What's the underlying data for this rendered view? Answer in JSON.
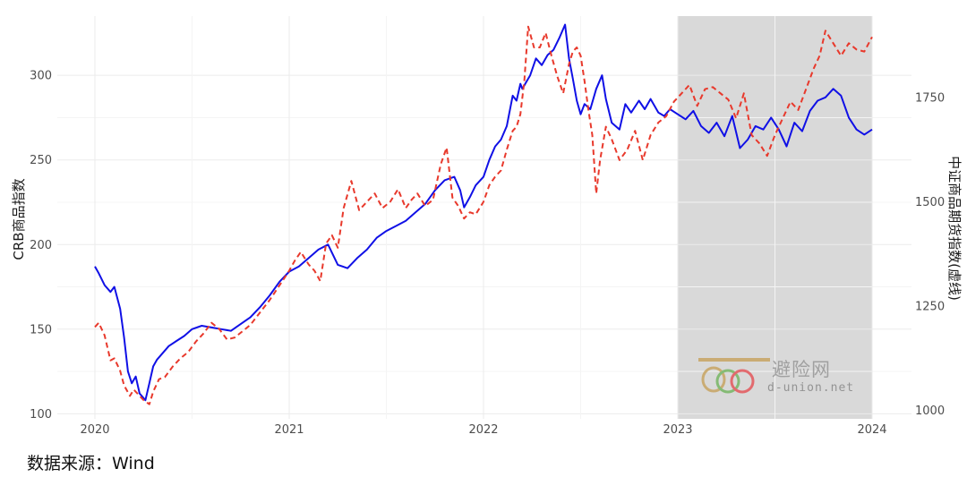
{
  "chart_data": {
    "type": "line",
    "title": "",
    "ylabel_left": "CRB商品指数",
    "ylabel_right": "中证商品期货指数(虚线)",
    "x_ticks": [
      "2020",
      "2021",
      "2022",
      "2023",
      "2024"
    ],
    "xlim": [
      2020.0,
      2024.0
    ],
    "ylim_left": [
      97,
      335
    ],
    "y_ticks_left": [
      100,
      150,
      200,
      250,
      300
    ],
    "ylim_right": [
      980,
      1945
    ],
    "y_ticks_right": [
      1000,
      1250,
      1500,
      1750
    ],
    "grid": true,
    "shaded_region": {
      "x_start": 2023.0,
      "x_end": 2024.0,
      "color": "#d9d9d9"
    },
    "series": [
      {
        "axis": "left",
        "style": "solid",
        "color": "#1010e6",
        "x": [
          2020.0,
          2020.02,
          2020.05,
          2020.08,
          2020.1,
          2020.13,
          2020.15,
          2020.17,
          2020.19,
          2020.21,
          2020.23,
          2020.26,
          2020.28,
          2020.3,
          2020.32,
          2020.35,
          2020.38,
          2020.42,
          2020.46,
          2020.5,
          2020.55,
          2020.6,
          2020.65,
          2020.7,
          2020.75,
          2020.8,
          2020.85,
          2020.9,
          2020.95,
          2021.0,
          2021.05,
          2021.1,
          2021.15,
          2021.2,
          2021.25,
          2021.3,
          2021.35,
          2021.4,
          2021.45,
          2021.5,
          2021.55,
          2021.6,
          2021.65,
          2021.7,
          2021.75,
          2021.8,
          2021.85,
          2021.88,
          2021.9,
          2021.93,
          2021.96,
          2022.0,
          2022.03,
          2022.06,
          2022.09,
          2022.12,
          2022.15,
          2022.17,
          2022.19,
          2022.2,
          2022.22,
          2022.24,
          2022.27,
          2022.3,
          2022.33,
          2022.36,
          2022.39,
          2022.42,
          2022.44,
          2022.46,
          2022.48,
          2022.5,
          2022.52,
          2022.55,
          2022.58,
          2022.61,
          2022.63,
          2022.66,
          2022.7,
          2022.73,
          2022.76,
          2022.8,
          2022.83,
          2022.86,
          2022.9,
          2022.93,
          2022.96,
          2023.0,
          2023.04,
          2023.08,
          2023.12,
          2023.16,
          2023.2,
          2023.24,
          2023.28,
          2023.32,
          2023.36,
          2023.4,
          2023.44,
          2023.48,
          2023.52,
          2023.56,
          2023.6,
          2023.64,
          2023.68,
          2023.72,
          2023.76,
          2023.8,
          2023.84,
          2023.88,
          2023.92,
          2023.96,
          2024.0
        ],
        "y": [
          187,
          183,
          176,
          172,
          175,
          162,
          145,
          125,
          118,
          122,
          112,
          108,
          118,
          128,
          132,
          136,
          140,
          143,
          146,
          150,
          152,
          151,
          150,
          149,
          153,
          157,
          163,
          170,
          178,
          184,
          187,
          192,
          197,
          200,
          188,
          186,
          192,
          197,
          204,
          208,
          211,
          214,
          219,
          224,
          232,
          238,
          240,
          232,
          222,
          228,
          235,
          240,
          250,
          258,
          262,
          270,
          288,
          285,
          295,
          292,
          296,
          300,
          310,
          306,
          312,
          315,
          322,
          330,
          310,
          298,
          285,
          277,
          283,
          280,
          292,
          300,
          286,
          272,
          268,
          283,
          278,
          285,
          280,
          286,
          278,
          276,
          280,
          277,
          274,
          279,
          270,
          266,
          272,
          264,
          276,
          257,
          262,
          270,
          268,
          275,
          268,
          258,
          272,
          267,
          279,
          285,
          287,
          292,
          288,
          275,
          268,
          265,
          268
        ]
      },
      {
        "axis": "right",
        "style": "dashed",
        "color": "#e8392c",
        "x": [
          2020.0,
          2020.02,
          2020.05,
          2020.08,
          2020.1,
          2020.13,
          2020.15,
          2020.18,
          2020.2,
          2020.22,
          2020.25,
          2020.28,
          2020.3,
          2020.33,
          2020.36,
          2020.4,
          2020.44,
          2020.48,
          2020.52,
          2020.56,
          2020.6,
          2020.64,
          2020.68,
          2020.72,
          2020.76,
          2020.8,
          2020.85,
          2020.9,
          2020.95,
          2021.0,
          2021.03,
          2021.06,
          2021.1,
          2021.13,
          2021.16,
          2021.19,
          2021.22,
          2021.25,
          2021.28,
          2021.32,
          2021.36,
          2021.4,
          2021.44,
          2021.48,
          2021.52,
          2021.56,
          2021.6,
          2021.63,
          2021.66,
          2021.7,
          2021.74,
          2021.78,
          2021.81,
          2021.84,
          2021.87,
          2021.9,
          2021.93,
          2021.96,
          2022.0,
          2022.03,
          2022.06,
          2022.09,
          2022.12,
          2022.15,
          2022.17,
          2022.19,
          2022.21,
          2022.23,
          2022.26,
          2022.29,
          2022.32,
          2022.35,
          2022.38,
          2022.41,
          2022.44,
          2022.46,
          2022.48,
          2022.5,
          2022.52,
          2022.54,
          2022.56,
          2022.58,
          2022.6,
          2022.63,
          2022.66,
          2022.7,
          2022.74,
          2022.78,
          2022.82,
          2022.86,
          2022.9,
          2022.94,
          2022.98,
          2023.02,
          2023.06,
          2023.1,
          2023.14,
          2023.18,
          2023.22,
          2023.26,
          2023.3,
          2023.34,
          2023.38,
          2023.42,
          2023.46,
          2023.5,
          2023.54,
          2023.58,
          2023.62,
          2023.66,
          2023.7,
          2023.73,
          2023.76,
          2023.8,
          2023.84,
          2023.88,
          2023.92,
          2023.96,
          2024.0
        ],
        "y": [
          1200,
          1210,
          1180,
          1120,
          1125,
          1095,
          1060,
          1035,
          1050,
          1040,
          1025,
          1015,
          1045,
          1075,
          1080,
          1105,
          1125,
          1140,
          1165,
          1185,
          1210,
          1195,
          1170,
          1175,
          1190,
          1205,
          1235,
          1265,
          1300,
          1335,
          1360,
          1380,
          1350,
          1335,
          1310,
          1400,
          1420,
          1390,
          1485,
          1550,
          1480,
          1500,
          1520,
          1485,
          1500,
          1530,
          1485,
          1505,
          1520,
          1490,
          1505,
          1590,
          1630,
          1510,
          1490,
          1460,
          1475,
          1470,
          1500,
          1540,
          1560,
          1575,
          1625,
          1670,
          1680,
          1710,
          1790,
          1920,
          1870,
          1870,
          1905,
          1850,
          1800,
          1760,
          1830,
          1860,
          1870,
          1850,
          1790,
          1720,
          1660,
          1520,
          1600,
          1680,
          1650,
          1600,
          1625,
          1670,
          1600,
          1660,
          1690,
          1705,
          1740,
          1760,
          1780,
          1730,
          1770,
          1775,
          1760,
          1745,
          1700,
          1760,
          1660,
          1640,
          1610,
          1660,
          1700,
          1740,
          1720,
          1770,
          1820,
          1850,
          1910,
          1880,
          1850,
          1880,
          1865,
          1860,
          1895
        ]
      }
    ]
  },
  "watermark": {
    "name": "避险网",
    "url": "d-union.net"
  },
  "source": "数据来源：Wind"
}
